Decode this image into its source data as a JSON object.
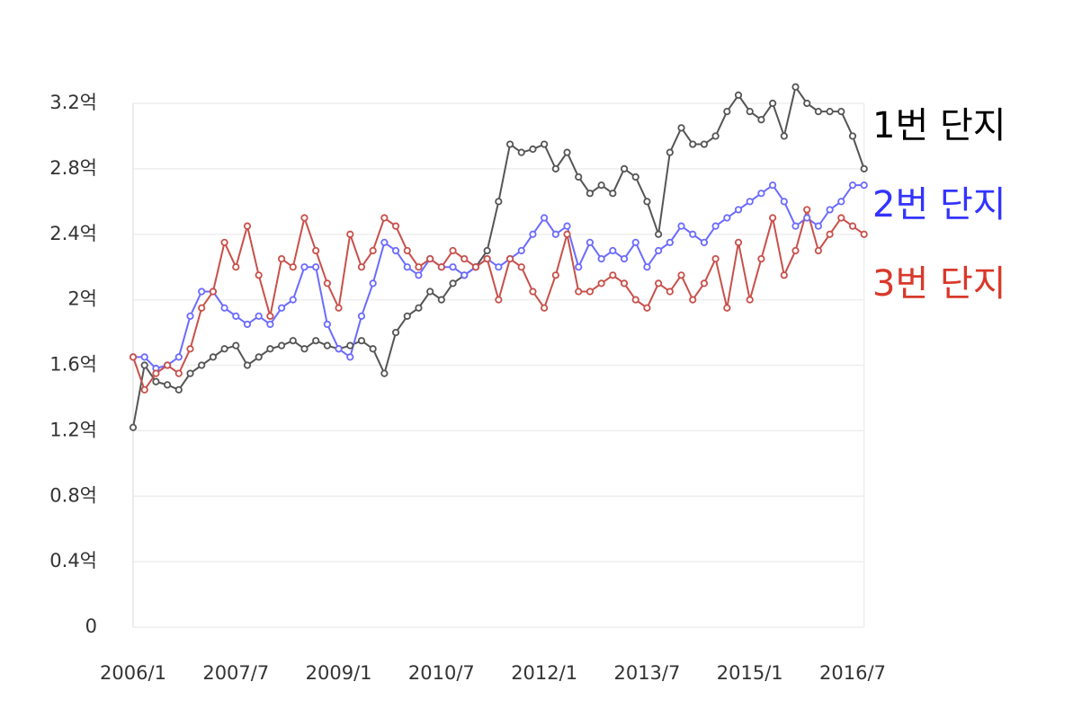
{
  "chart_data": {
    "type": "line",
    "x": [
      "2006/1",
      "2006/3",
      "2006/5",
      "2006/7",
      "2006/9",
      "2006/11",
      "2007/1",
      "2007/3",
      "2007/5",
      "2007/7",
      "2007/9",
      "2007/11",
      "2008/1",
      "2008/3",
      "2008/5",
      "2008/7",
      "2008/9",
      "2008/11",
      "2009/1",
      "2009/3",
      "2009/5",
      "2009/7",
      "2009/9",
      "2009/11",
      "2010/1",
      "2010/3",
      "2010/5",
      "2010/7",
      "2010/9",
      "2010/11",
      "2011/1",
      "2011/3",
      "2011/5",
      "2011/7",
      "2011/9",
      "2011/11",
      "2012/1",
      "2012/3",
      "2012/5",
      "2012/7",
      "2012/9",
      "2012/11",
      "2013/1",
      "2013/3",
      "2013/5",
      "2013/7",
      "2013/9",
      "2013/11",
      "2014/1",
      "2014/3",
      "2014/5",
      "2014/7",
      "2014/9",
      "2014/11",
      "2015/1",
      "2015/3",
      "2015/5",
      "2015/7",
      "2015/9",
      "2015/11",
      "2016/1",
      "2016/3",
      "2016/5",
      "2016/7",
      "2016/9"
    ],
    "series": [
      {
        "name": "1번 단지",
        "color": "#555555",
        "legend_color": "#000000",
        "values": [
          1.22,
          1.6,
          1.5,
          1.48,
          1.45,
          1.55,
          1.6,
          1.65,
          1.7,
          1.72,
          1.6,
          1.65,
          1.7,
          1.72,
          1.75,
          1.7,
          1.75,
          1.72,
          1.7,
          1.72,
          1.75,
          1.7,
          1.55,
          1.8,
          1.9,
          1.95,
          2.05,
          2.0,
          2.1,
          2.15,
          2.2,
          2.3,
          2.6,
          2.95,
          2.9,
          2.92,
          2.95,
          2.8,
          2.9,
          2.75,
          2.65,
          2.7,
          2.65,
          2.8,
          2.75,
          2.6,
          2.4,
          2.9,
          3.05,
          2.95,
          2.95,
          3.0,
          3.15,
          3.25,
          3.15,
          3.1,
          3.2,
          3.0,
          3.3,
          3.2,
          3.15,
          3.15,
          3.15,
          3.0,
          2.8
        ]
      },
      {
        "name": "2번 단지",
        "color": "#6b6bff",
        "legend_color": "#3333ff",
        "values": [
          1.65,
          1.65,
          1.58,
          1.6,
          1.65,
          1.9,
          2.05,
          2.05,
          1.95,
          1.9,
          1.85,
          1.9,
          1.85,
          1.95,
          2.0,
          2.2,
          2.2,
          1.85,
          1.7,
          1.65,
          1.9,
          2.1,
          2.35,
          2.3,
          2.2,
          2.15,
          2.25,
          2.2,
          2.2,
          2.15,
          2.2,
          2.25,
          2.2,
          2.25,
          2.3,
          2.4,
          2.5,
          2.4,
          2.45,
          2.2,
          2.35,
          2.25,
          2.3,
          2.25,
          2.35,
          2.2,
          2.3,
          2.35,
          2.45,
          2.4,
          2.35,
          2.45,
          2.5,
          2.55,
          2.6,
          2.65,
          2.7,
          2.6,
          2.45,
          2.5,
          2.45,
          2.55,
          2.6,
          2.7,
          2.7
        ]
      },
      {
        "name": "3번 단지",
        "color": "#c8504a",
        "legend_color": "#d9382a",
        "values": [
          1.65,
          1.45,
          1.55,
          1.6,
          1.55,
          1.7,
          1.95,
          2.05,
          2.35,
          2.2,
          2.45,
          2.15,
          1.9,
          2.25,
          2.2,
          2.5,
          2.3,
          2.1,
          1.95,
          2.4,
          2.2,
          2.3,
          2.5,
          2.45,
          2.3,
          2.2,
          2.25,
          2.2,
          2.3,
          2.25,
          2.2,
          2.25,
          2.0,
          2.25,
          2.2,
          2.05,
          1.95,
          2.15,
          2.4,
          2.05,
          2.05,
          2.1,
          2.15,
          2.1,
          2.0,
          1.95,
          2.1,
          2.05,
          2.15,
          2.0,
          2.1,
          2.25,
          1.95,
          2.35,
          2.0,
          2.25,
          2.5,
          2.15,
          2.3,
          2.55,
          2.3,
          2.4,
          2.5,
          2.45,
          2.4
        ]
      }
    ],
    "xticks": [
      "2006/1",
      "2007/7",
      "2009/1",
      "2010/7",
      "2012/1",
      "2013/7",
      "2015/1",
      "2016/7"
    ],
    "ylim": [
      0,
      3.2
    ],
    "yticks": [
      0,
      {
        "value": 0.4,
        "label": "0.4억"
      },
      {
        "value": 0.8,
        "label": "0.8억"
      },
      {
        "value": 1.2,
        "label": "1.2억"
      },
      {
        "value": 1.6,
        "label": "1.6억"
      },
      {
        "value": 2,
        "label": "2억"
      },
      {
        "value": 2.4,
        "label": "2.4억"
      },
      {
        "value": 2.8,
        "label": "2.8억"
      },
      {
        "value": 3.2,
        "label": "3.2억"
      }
    ],
    "grid": true
  }
}
